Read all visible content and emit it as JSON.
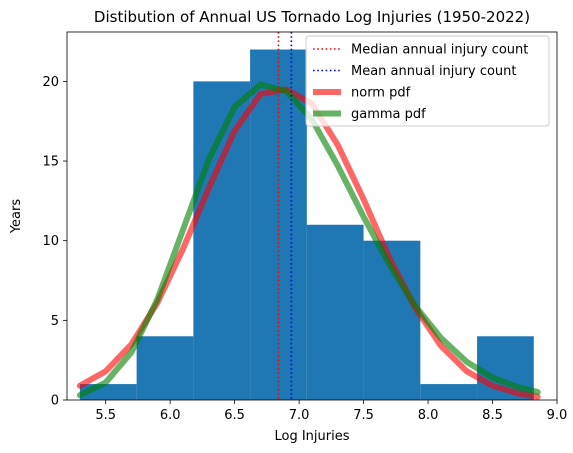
{
  "chart_data": {
    "type": "bar",
    "title": "Distibution of Annual US Tornado Log Injuries (1950-2022)",
    "xlabel": "Log Injuries",
    "ylabel": "Years",
    "xlim": [
      5.2,
      9.0
    ],
    "ylim": [
      0,
      23.1
    ],
    "xticks": [
      5.5,
      6.0,
      6.5,
      7.0,
      7.5,
      8.0,
      8.5,
      9.0
    ],
    "xtick_labels": [
      "5.5",
      "6.0",
      "6.5",
      "7.0",
      "7.5",
      "8.0",
      "8.5",
      "9.0"
    ],
    "yticks": [
      0,
      5,
      10,
      15,
      20
    ],
    "ytick_labels": [
      "0",
      "5",
      "10",
      "15",
      "20"
    ],
    "grid": false,
    "histogram": {
      "bin_edges": [
        5.3,
        5.74,
        6.18,
        6.62,
        7.06,
        7.5,
        7.94,
        8.38,
        8.82
      ],
      "counts": [
        1,
        4,
        20,
        22,
        11,
        10,
        1,
        4
      ],
      "color": "#1f77b4"
    },
    "vlines": [
      {
        "label": "Median annual injury count",
        "x": 6.84,
        "color": "#ff0000",
        "style": "dotted"
      },
      {
        "label": "Mean annual injury count",
        "x": 6.94,
        "color": "#0000ff",
        "style": "dotted"
      }
    ],
    "series": [
      {
        "name": "norm pdf",
        "color": "#ff0000",
        "opacity": 0.6,
        "x": [
          5.3,
          5.5,
          5.7,
          5.9,
          6.1,
          6.3,
          6.5,
          6.7,
          6.9,
          7.1,
          7.3,
          7.5,
          7.7,
          7.9,
          8.1,
          8.3,
          8.5,
          8.7,
          8.85
        ],
        "y": [
          0.9,
          1.8,
          3.5,
          6.1,
          9.5,
          13.3,
          16.9,
          19.2,
          19.5,
          18.6,
          16.0,
          12.6,
          8.9,
          5.8,
          3.4,
          1.8,
          0.9,
          0.4,
          0.2
        ]
      },
      {
        "name": "gamma pdf",
        "color": "#008000",
        "opacity": 0.6,
        "x": [
          5.3,
          5.5,
          5.7,
          5.9,
          6.1,
          6.3,
          6.5,
          6.7,
          6.9,
          7.1,
          7.3,
          7.5,
          7.7,
          7.9,
          8.1,
          8.3,
          8.5,
          8.7,
          8.85
        ],
        "y": [
          0.3,
          1.1,
          3.0,
          6.3,
          10.7,
          15.1,
          18.4,
          19.8,
          19.4,
          17.6,
          14.7,
          11.5,
          8.5,
          5.9,
          3.9,
          2.4,
          1.4,
          0.8,
          0.5
        ]
      }
    ],
    "legend": {
      "placement": "top-right",
      "entries": [
        {
          "label": "Median annual injury count",
          "color": "#ff0000",
          "kind": "dotted"
        },
        {
          "label": "Mean annual injury count",
          "color": "#0000ff",
          "kind": "dotted"
        },
        {
          "label": "norm pdf",
          "color": "#ff0000",
          "kind": "thick",
          "opacity": 0.6
        },
        {
          "label": "gamma pdf",
          "color": "#008000",
          "kind": "thick",
          "opacity": 0.6
        }
      ]
    }
  }
}
